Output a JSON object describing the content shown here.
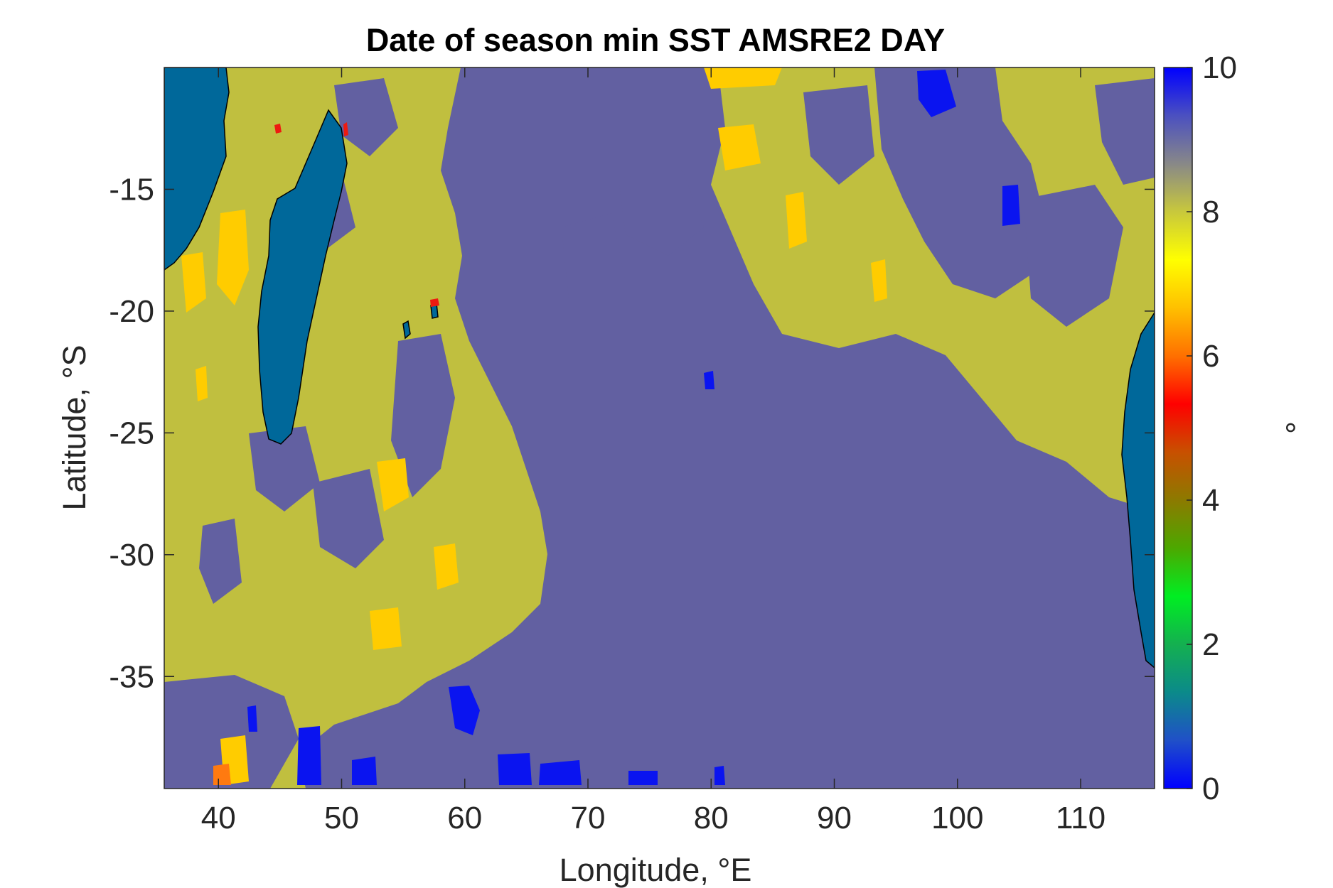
{
  "chart_data": {
    "type": "heatmap",
    "title": "Date of season min SST AMSRE2 DAY",
    "xlabel": "Longitude, °E",
    "ylabel": "Latitude, °S",
    "xlim": [
      35.6,
      116.0
    ],
    "ylim": [
      -39.6,
      -10.0
    ],
    "xticks": [
      40,
      50,
      60,
      70,
      80,
      90,
      100,
      110
    ],
    "yticks": [
      -15,
      -20,
      -25,
      -30,
      -35
    ],
    "colorbar": {
      "label": "°",
      "range": [
        0,
        10
      ],
      "ticks": [
        0,
        2,
        4,
        6,
        8,
        10
      ],
      "land_color": "#00689a",
      "stops": [
        "#0000ff",
        "#2050c8",
        "#0b8a8a",
        "#14b050",
        "#00ee22",
        "#4ca800",
        "#8c7a00",
        "#c85000",
        "#ff0000",
        "#ff7000",
        "#ffc000",
        "#ffff00",
        "#c8c83c",
        "#888888",
        "#4b50c0",
        "#0000ff"
      ]
    },
    "dominant_values": [
      {
        "value": 8.1,
        "color": "#c0bf3f"
      },
      {
        "value": 9.0,
        "color": "#6260a1"
      },
      {
        "value": 7.3,
        "color": "#ffcc00"
      },
      {
        "value": 9.9,
        "color": "#0a14f0"
      },
      {
        "value": 6.0,
        "color": "#ff7a10"
      },
      {
        "value": 5.2,
        "color": "#ee1a10"
      }
    ],
    "grid": false,
    "legend": "right colorbar"
  }
}
